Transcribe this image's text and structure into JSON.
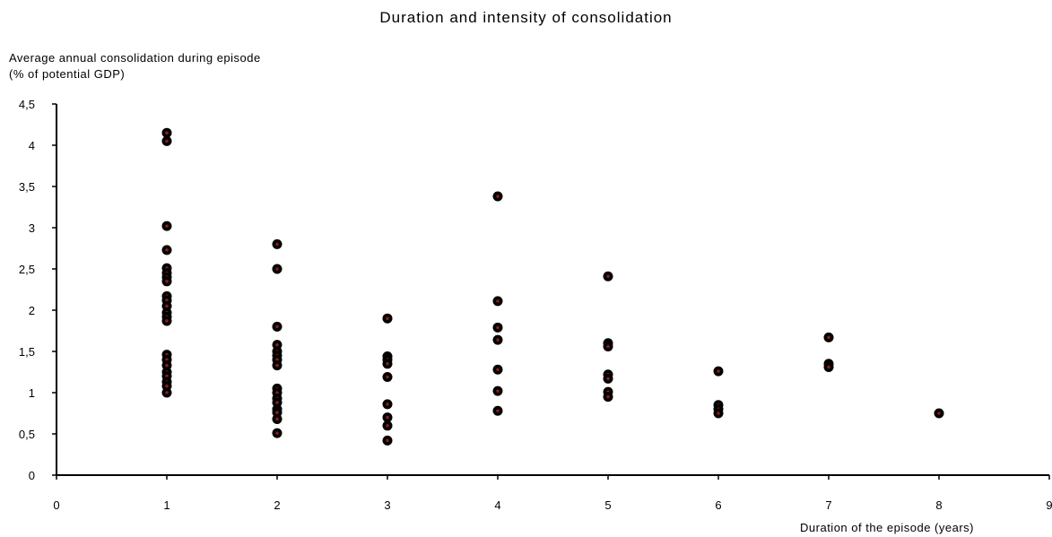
{
  "chart_data": {
    "type": "scatter",
    "title": "Duration and intensity of consolidation",
    "ylabel_lines": [
      "Average annual consolidation during episode",
      "(% of potential GDP)"
    ],
    "xlabel": "Duration of the episode (years)",
    "xlim": [
      0,
      9
    ],
    "ylim": [
      0,
      4.5
    ],
    "x_ticks": [
      0,
      1,
      2,
      3,
      4,
      5,
      6,
      7,
      8,
      9
    ],
    "x_tick_labels": [
      "0",
      "1",
      "2",
      "3",
      "4",
      "5",
      "6",
      "7",
      "8",
      "9"
    ],
    "y_ticks": [
      0,
      0.5,
      1,
      1.5,
      2,
      2.5,
      3,
      3.5,
      4,
      4.5
    ],
    "y_tick_labels": [
      "0",
      "0,5",
      "1",
      "1,5",
      "2",
      "2,5",
      "3",
      "3,5",
      "4",
      "4,5"
    ],
    "grid": false,
    "marker_color": "#000000",
    "marker_center_color": "#8b1a1a",
    "points": [
      [
        1,
        4.15
      ],
      [
        1,
        4.05
      ],
      [
        1,
        3.02
      ],
      [
        1,
        2.73
      ],
      [
        1,
        2.51
      ],
      [
        1,
        2.45
      ],
      [
        1,
        2.4
      ],
      [
        1,
        2.35
      ],
      [
        1,
        2.17
      ],
      [
        1,
        2.12
      ],
      [
        1,
        2.05
      ],
      [
        1,
        1.97
      ],
      [
        1,
        1.92
      ],
      [
        1,
        1.87
      ],
      [
        1,
        1.46
      ],
      [
        1,
        1.4
      ],
      [
        1,
        1.33
      ],
      [
        1,
        1.25
      ],
      [
        1,
        1.2
      ],
      [
        1,
        1.13
      ],
      [
        1,
        1.08
      ],
      [
        1,
        1.0
      ],
      [
        2,
        2.8
      ],
      [
        2,
        2.5
      ],
      [
        2,
        1.8
      ],
      [
        2,
        1.58
      ],
      [
        2,
        1.5
      ],
      [
        2,
        1.45
      ],
      [
        2,
        1.4
      ],
      [
        2,
        1.33
      ],
      [
        2,
        1.05
      ],
      [
        2,
        1.0
      ],
      [
        2,
        0.93
      ],
      [
        2,
        0.88
      ],
      [
        2,
        0.8
      ],
      [
        2,
        0.76
      ],
      [
        2,
        0.68
      ],
      [
        2,
        0.51
      ],
      [
        3,
        1.9
      ],
      [
        3,
        1.44
      ],
      [
        3,
        1.4
      ],
      [
        3,
        1.35
      ],
      [
        3,
        1.19
      ],
      [
        3,
        0.86
      ],
      [
        3,
        0.7
      ],
      [
        3,
        0.6
      ],
      [
        3,
        0.42
      ],
      [
        4,
        3.38
      ],
      [
        4,
        2.11
      ],
      [
        4,
        1.79
      ],
      [
        4,
        1.64
      ],
      [
        4,
        1.28
      ],
      [
        4,
        1.02
      ],
      [
        4,
        0.78
      ],
      [
        5,
        2.41
      ],
      [
        5,
        1.6
      ],
      [
        5,
        1.56
      ],
      [
        5,
        1.22
      ],
      [
        5,
        1.17
      ],
      [
        5,
        1.01
      ],
      [
        5,
        0.95
      ],
      [
        6,
        1.26
      ],
      [
        6,
        0.85
      ],
      [
        6,
        0.8
      ],
      [
        6,
        0.75
      ],
      [
        7,
        1.67
      ],
      [
        7,
        1.35
      ],
      [
        7,
        1.31
      ],
      [
        8,
        0.75
      ]
    ]
  }
}
